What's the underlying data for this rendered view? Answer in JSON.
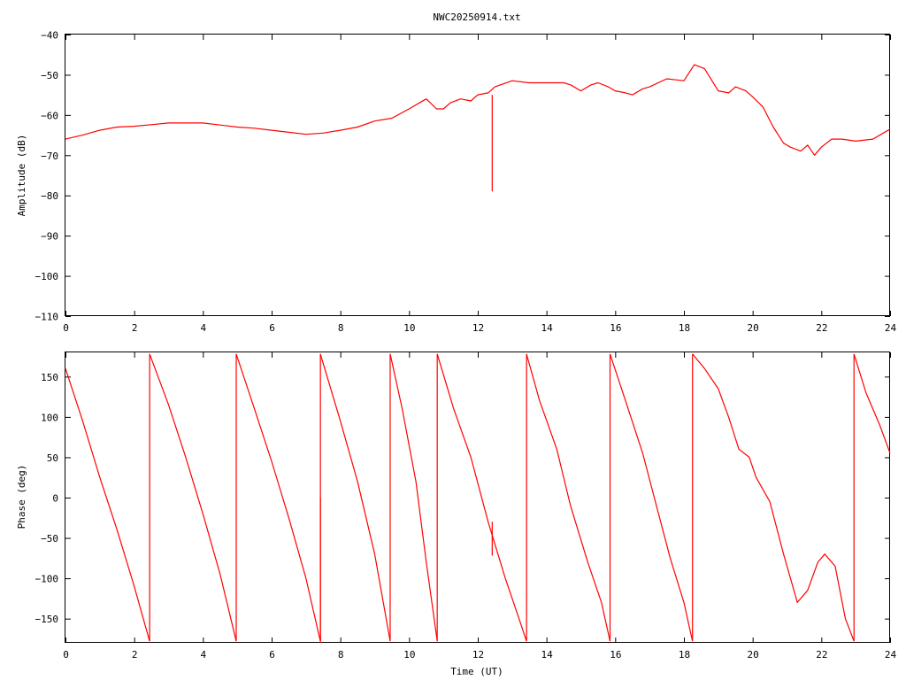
{
  "chart_data": [
    {
      "type": "line",
      "title": "NWC20250914.txt",
      "xlabel": "",
      "ylabel": "Amplitude (dB)",
      "xlim": [
        0,
        24
      ],
      "ylim": [
        -110,
        -40
      ],
      "grid": false,
      "x_ticks": [
        "0",
        "2",
        "4",
        "6",
        "8",
        "10",
        "12",
        "14",
        "16",
        "18",
        "20",
        "22",
        "24"
      ],
      "y_ticks": [
        "-40",
        "-50",
        "-60",
        "-70",
        "-80",
        "-90",
        "-100",
        "-110"
      ],
      "color": "#ff0000",
      "series": [
        {
          "x": [
            0,
            0.5,
            1,
            1.5,
            2,
            2.5,
            3,
            3.5,
            4,
            4.5,
            5,
            5.5,
            6,
            6.5,
            7,
            7.5,
            8,
            8.5,
            9,
            9.5,
            10,
            10.3,
            10.5,
            10.8,
            11,
            11.2,
            11.5,
            11.8,
            12,
            12.3,
            12.5,
            13,
            13.5,
            14,
            14.5,
            14.7,
            15,
            15.3,
            15.5,
            15.8,
            16,
            16.3,
            16.5,
            16.8,
            17,
            17.5,
            18,
            18.3,
            18.6,
            19,
            19.3,
            19.5,
            19.8,
            20,
            20.3,
            20.6,
            20.9,
            21.1,
            21.4,
            21.6,
            21.8,
            22,
            22.3,
            22.6,
            23,
            23.5,
            24
          ],
          "y": [
            -66,
            -65,
            -63.8,
            -63,
            -62.8,
            -62.4,
            -62,
            -62,
            -62,
            -62.5,
            -63,
            -63.3,
            -63.8,
            -64.3,
            -64.8,
            -64.5,
            -63.8,
            -63,
            -61.5,
            -60.8,
            -58.5,
            -57,
            -56,
            -58.5,
            -58.5,
            -57,
            -56,
            -56.5,
            -55,
            -54.5,
            -53,
            -51.5,
            -52,
            -52,
            -52,
            -52.5,
            -54,
            -52.5,
            -52,
            -53,
            -54,
            -54.5,
            -55,
            -53.5,
            -53,
            -51,
            -51.5,
            -47.5,
            -48.5,
            -54,
            -54.5,
            -53,
            -54,
            -55.5,
            -58,
            -63,
            -67,
            -68,
            -69,
            -67.5,
            -70,
            -68,
            -66,
            -66,
            -66.5,
            -66,
            -63.5
          ]
        }
      ],
      "spikes": [
        {
          "x": 12.42,
          "y_from": -55,
          "y_to": -79
        }
      ]
    },
    {
      "type": "line",
      "title": "",
      "xlabel": "Time (UT)",
      "ylabel": "Phase (deg)",
      "xlim": [
        0,
        24
      ],
      "ylim": [
        -180,
        180
      ],
      "grid": false,
      "x_ticks": [
        "0",
        "2",
        "4",
        "6",
        "8",
        "10",
        "12",
        "14",
        "16",
        "18",
        "20",
        "22",
        "24"
      ],
      "y_ticks": [
        "150",
        "100",
        "50",
        "0",
        "-50",
        "-100",
        "-150"
      ],
      "color": "#ff0000",
      "series": [
        {
          "x": [
            0,
            0.5,
            1,
            1.5,
            2,
            2.45
          ],
          "y": [
            160,
            95,
            25,
            -40,
            -110,
            -178
          ]
        },
        {
          "x": [
            2.45,
            3,
            3.5,
            4,
            4.5,
            4.97
          ],
          "y": [
            178,
            115,
            50,
            -20,
            -95,
            -178
          ]
        },
        {
          "x": [
            4.97,
            5.5,
            6,
            6.5,
            7,
            7.42
          ],
          "y": [
            178,
            110,
            45,
            -25,
            -100,
            -178
          ]
        },
        {
          "x": [
            7.42,
            8,
            8.5,
            9,
            9.45
          ],
          "y": [
            178,
            95,
            20,
            -70,
            -178
          ]
        },
        {
          "x": [
            9.45,
            9.8,
            10.2,
            10.5,
            10.82
          ],
          "y": [
            178,
            110,
            20,
            -80,
            -178
          ]
        },
        {
          "x": [
            10.82,
            11.3,
            11.8,
            12.3,
            12.8,
            13.2,
            13.42
          ],
          "y": [
            178,
            110,
            50,
            -30,
            -100,
            -150,
            -178
          ]
        },
        {
          "x": [
            13.42,
            13.8,
            14.3,
            14.7,
            15.2,
            15.6,
            15.85
          ],
          "y": [
            178,
            120,
            60,
            -10,
            -80,
            -130,
            -178
          ]
        },
        {
          "x": [
            15.85,
            16.3,
            16.8,
            17.2,
            17.6,
            18,
            18.25
          ],
          "y": [
            178,
            120,
            55,
            -10,
            -75,
            -130,
            -178
          ]
        },
        {
          "x": [
            18.25,
            18.6,
            19,
            19.3,
            19.6,
            19.9,
            20.1,
            20.5,
            20.9,
            21.3,
            21.6,
            21.9,
            22.1,
            22.4,
            22.7,
            22.95
          ],
          "y": [
            178,
            160,
            135,
            100,
            60,
            50,
            25,
            -5,
            -70,
            -130,
            -115,
            -80,
            -70,
            -85,
            -150,
            -178
          ]
        },
        {
          "x": [
            22.95,
            23.3,
            23.7,
            24
          ],
          "y": [
            178,
            130,
            90,
            55
          ]
        }
      ],
      "spikes": [
        {
          "x": 7.42,
          "y_from": -180,
          "y_to": 0
        },
        {
          "x": 12.42,
          "y_from": -30,
          "y_to": -72
        }
      ]
    }
  ]
}
